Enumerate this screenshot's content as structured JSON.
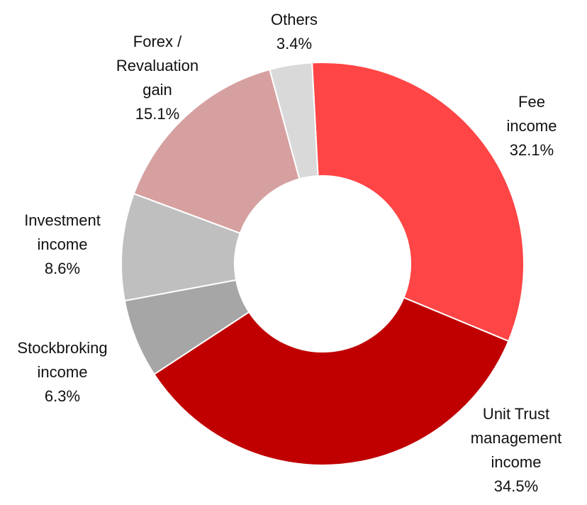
{
  "chart_data": {
    "type": "donut",
    "categories": [
      "Fee income",
      "Unit Trust\nmanagement\nincome",
      "Stockbroking\nincome",
      "Investment\nincome",
      "Forex /\nRevaluation\ngain",
      "Others"
    ],
    "values": [
      32.1,
      34.5,
      6.3,
      8.6,
      15.1,
      3.4
    ],
    "value_labels": [
      "32.1%",
      "34.5%",
      "6.3%",
      "8.6%",
      "15.1%",
      "3.4%"
    ],
    "colors": [
      "#ff4545",
      "#c00000",
      "#a6a6a6",
      "#bfbfbf",
      "#d6a0a0",
      "#d9d9d9"
    ]
  }
}
